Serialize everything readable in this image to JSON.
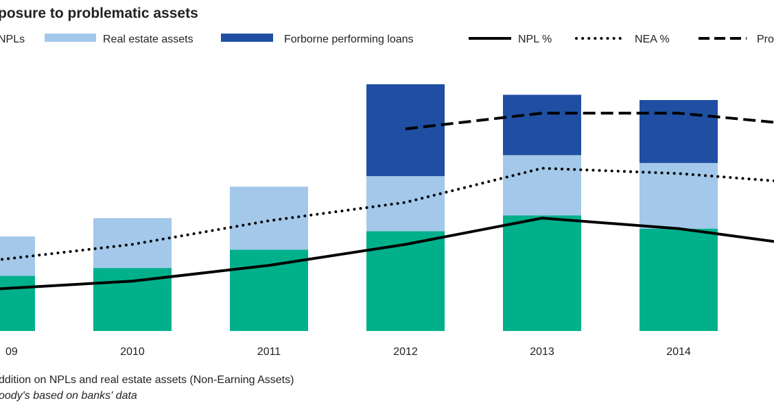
{
  "chart_data": {
    "type": "bar",
    "stacked": true,
    "title": "posure to problematic assets",
    "categories": [
      "09",
      "2010",
      "2011",
      "2012",
      "2013",
      "2014",
      ""
    ],
    "series": [
      {
        "name": "NPLs",
        "kind": "bar",
        "color": "#00b08b",
        "values": [
          21,
          24,
          31,
          38,
          44,
          39,
          null
        ]
      },
      {
        "name": "Real estate assets",
        "kind": "bar",
        "color": "#a3c8e9",
        "values": [
          15,
          19,
          24,
          21,
          23,
          25,
          null
        ]
      },
      {
        "name": "Forborne performing loans",
        "kind": "bar",
        "color": "#1f4ea3",
        "values": [
          0,
          0,
          0,
          35,
          23,
          24,
          null
        ]
      },
      {
        "name": "NPL %",
        "kind": "line",
        "style": "solid",
        "color": "#000000",
        "values": [
          16,
          19,
          25,
          33,
          43,
          39,
          32
        ]
      },
      {
        "name": "NEA %",
        "kind": "line",
        "style": "dotted",
        "color": "#000000",
        "values": [
          27,
          33,
          42,
          49,
          62,
          60,
          56
        ]
      },
      {
        "name": "Pro",
        "kind": "line",
        "style": "dashed",
        "color": "#000000",
        "values": [
          null,
          null,
          null,
          77,
          83,
          83,
          78
        ]
      }
    ],
    "ylim": [
      0,
      100
    ],
    "grid": false,
    "legend": "top",
    "footnotes": [
      "ddition on NPLs and real estate assets (Non-Earning Assets)",
      "oody's based on banks' data"
    ]
  }
}
